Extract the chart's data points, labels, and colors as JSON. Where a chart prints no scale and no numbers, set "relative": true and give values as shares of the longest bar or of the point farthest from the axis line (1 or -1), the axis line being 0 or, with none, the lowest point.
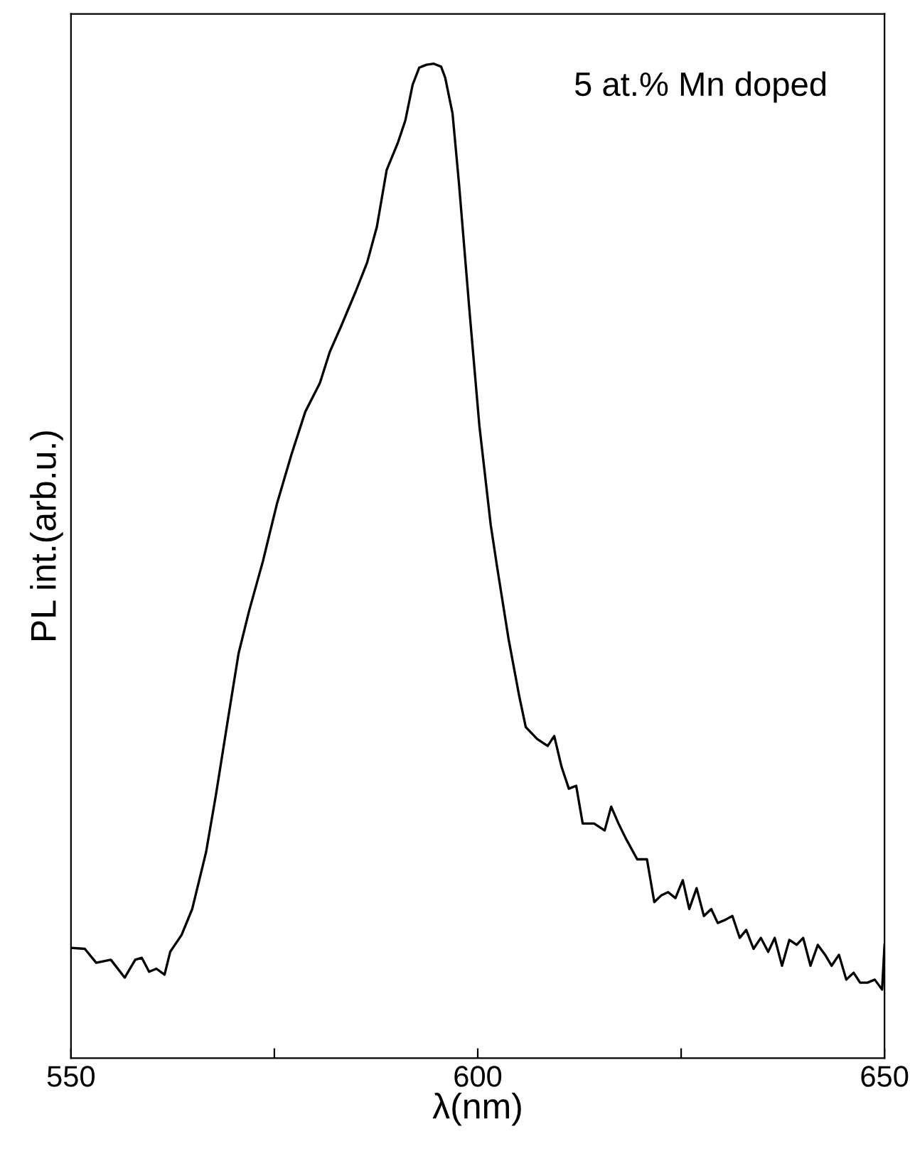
{
  "chart_data": {
    "type": "line",
    "xlabel": "λ(nm)",
    "ylabel": "PL int.(arb.u.)",
    "relative": true,
    "tick_labels": "x",
    "grid": false,
    "legend": false,
    "marker": "none",
    "line_style": "solid",
    "xlim": [
      550,
      650
    ],
    "xticks": [
      550,
      {
        "value": 575,
        "label": null
      },
      600,
      {
        "value": 625,
        "label": null
      },
      650
    ],
    "annotations": [
      "5 at.% Mn doped"
    ],
    "series": [
      {
        "color": "#000000",
        "x": [
          550.0,
          551.7,
          553.1,
          554.9,
          556.6,
          557.9,
          558.7,
          559.6,
          560.5,
          561.5,
          562.2,
          563.6,
          564.9,
          566.6,
          567.8,
          569.2,
          570.6,
          571.9,
          573.6,
          575.3,
          577.1,
          578.8,
          580.6,
          581.8,
          583.2,
          585.0,
          586.4,
          587.6,
          588.8,
          590.2,
          591.1,
          592.0,
          592.8,
          593.7,
          594.6,
          595.5,
          596.0,
          596.9,
          597.7,
          599.0,
          600.2,
          601.6,
          602.4,
          603.8,
          605.1,
          605.9,
          607.3,
          608.6,
          609.4,
          610.3,
          611.2,
          612.1,
          612.9,
          614.3,
          615.6,
          616.4,
          617.3,
          618.2,
          619.6,
          620.8,
          621.7,
          622.6,
          623.4,
          624.3,
          625.2,
          626.0,
          626.9,
          627.8,
          628.7,
          629.5,
          630.4,
          631.3,
          632.2,
          633.0,
          633.9,
          634.8,
          635.7,
          636.5,
          637.4,
          638.3,
          639.2,
          640.0,
          640.9,
          641.8,
          642.7,
          643.5,
          644.4,
          645.3,
          646.2,
          647.0,
          647.9,
          648.8,
          649.7,
          650.0
        ],
        "values": [
          0.111,
          0.11,
          0.096,
          0.099,
          0.081,
          0.099,
          0.101,
          0.087,
          0.09,
          0.084,
          0.107,
          0.124,
          0.15,
          0.207,
          0.264,
          0.336,
          0.407,
          0.45,
          0.5,
          0.557,
          0.607,
          0.65,
          0.679,
          0.71,
          0.736,
          0.771,
          0.8,
          0.836,
          0.893,
          0.921,
          0.943,
          0.979,
          0.996,
          0.999,
          1.0,
          0.997,
          0.986,
          0.95,
          0.879,
          0.75,
          0.636,
          0.536,
          0.493,
          0.421,
          0.364,
          0.333,
          0.321,
          0.314,
          0.324,
          0.293,
          0.271,
          0.274,
          0.236,
          0.236,
          0.229,
          0.253,
          0.236,
          0.221,
          0.2,
          0.2,
          0.157,
          0.164,
          0.167,
          0.161,
          0.179,
          0.15,
          0.171,
          0.143,
          0.15,
          0.136,
          0.139,
          0.143,
          0.121,
          0.129,
          0.11,
          0.121,
          0.107,
          0.121,
          0.093,
          0.119,
          0.114,
          0.121,
          0.093,
          0.114,
          0.104,
          0.093,
          0.104,
          0.079,
          0.086,
          0.076,
          0.076,
          0.079,
          0.069,
          0.114
        ]
      }
    ]
  }
}
